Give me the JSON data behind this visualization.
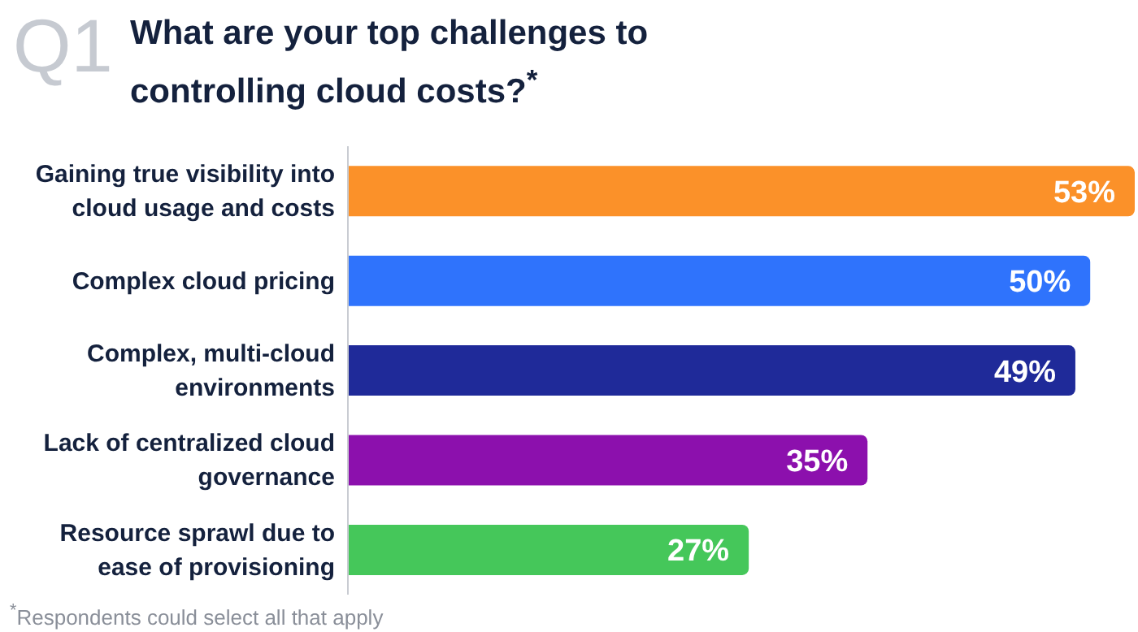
{
  "chart_data": {
    "type": "bar",
    "orientation": "horizontal",
    "title": "What are your top challenges to controlling cloud costs?$^{*}$",
    "annotations": [
      "Q1",
      "$^{*}$Respondents could select all that apply"
    ],
    "categories": [
      "Gaining true visibility into cloud usage and costs",
      "Complex cloud pricing",
      "Complex, multi-cloud environments",
      "Lack of centralized cloud governance",
      "Resource sprawl due to ease of provisioning"
    ],
    "values": [
      53,
      50,
      49,
      35,
      27
    ],
    "colors": [
      "#fb9129",
      "#2f73fc",
      "#1f2a99",
      "#8c10ad",
      "#45c75a"
    ],
    "value_labels": [
      "53%",
      "50%",
      "49%",
      "35%",
      "27%"
    ],
    "grid": false,
    "legend": false
  }
}
